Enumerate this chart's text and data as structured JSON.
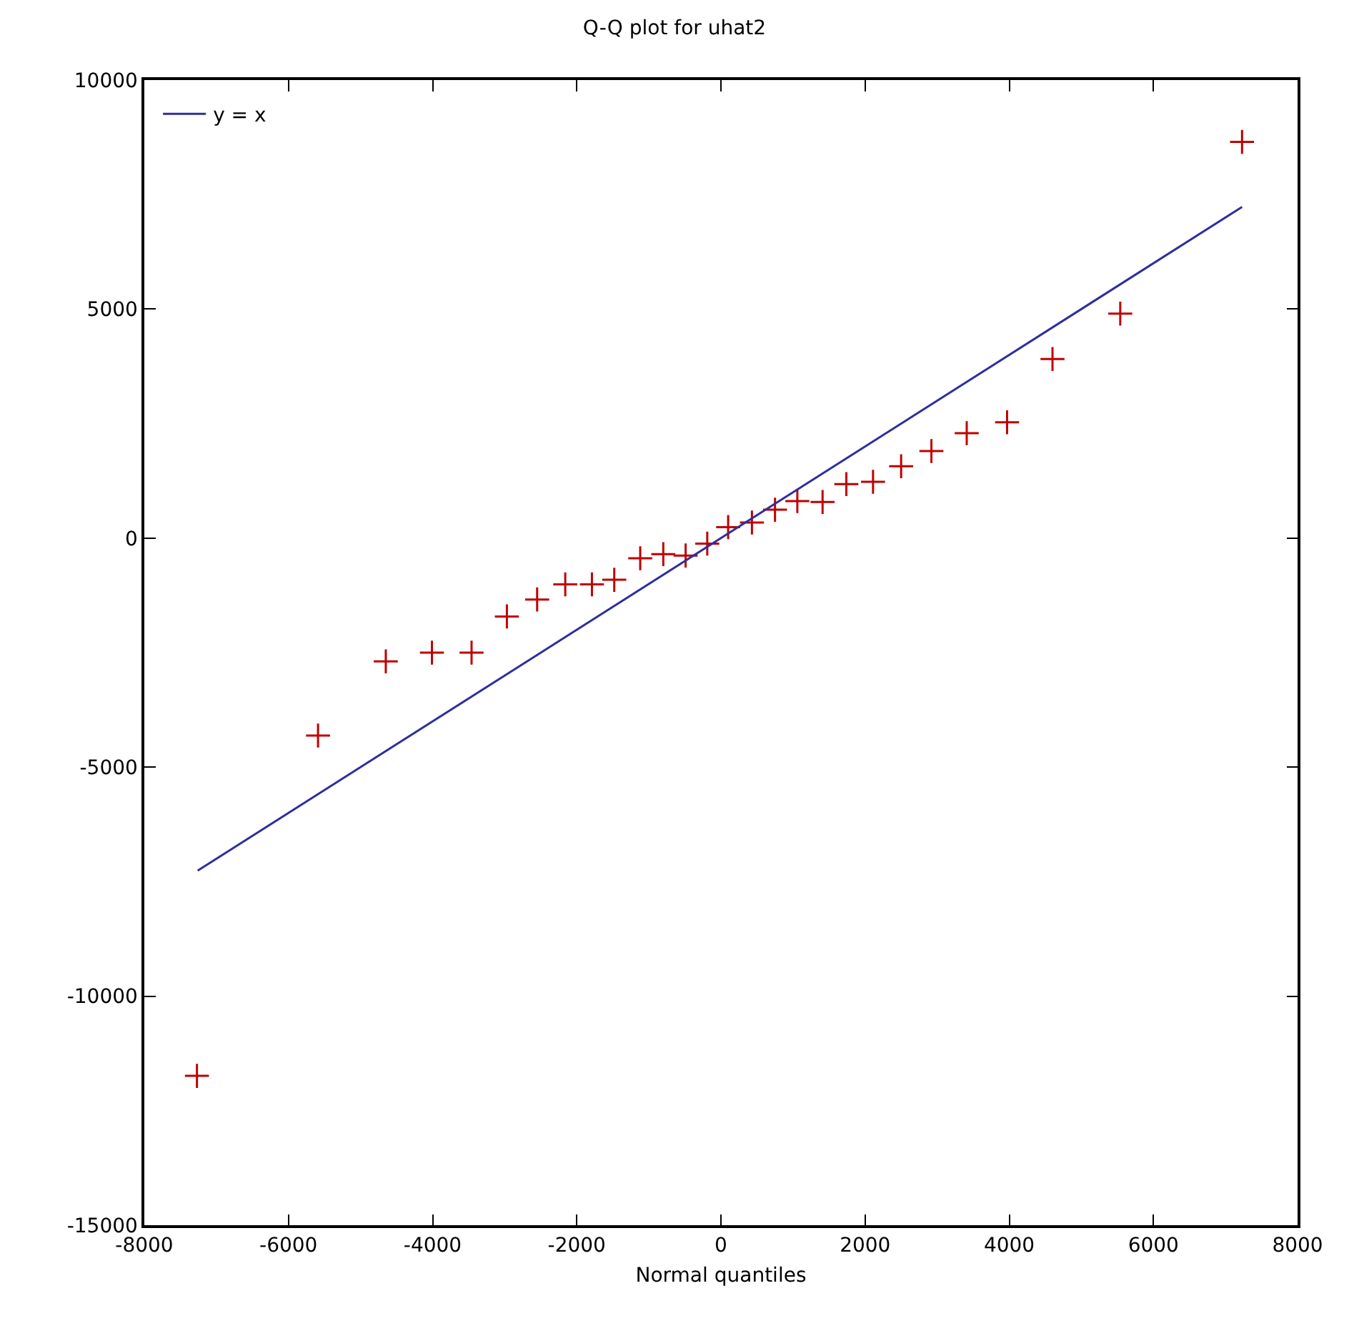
{
  "chart_data": {
    "type": "scatter",
    "title": "Q-Q plot for uhat2",
    "xlabel": "Normal quantiles",
    "series": [
      {
        "color": "#c00000",
        "x": [
          -7270,
          -5590,
          -4650,
          -4010,
          -3460,
          -2970,
          -2550,
          -2160,
          -1790,
          -1480,
          -1120,
          -800,
          -490,
          -190,
          100,
          430,
          750,
          1060,
          1410,
          1740,
          2110,
          2500,
          2920,
          3410,
          3970,
          4600,
          5540,
          7230
        ],
        "values": [
          -11740,
          -4310,
          -2690,
          -2500,
          -2500,
          -1710,
          -1340,
          -1010,
          -1010,
          -910,
          -440,
          -350,
          -380,
          -120,
          240,
          340,
          620,
          810,
          790,
          1180,
          1230,
          1570,
          1900,
          2290,
          2530,
          3910,
          4900,
          8650
        ]
      },
      {
        "type": "line",
        "name": "y = x",
        "color": "#2e2e9e",
        "marker": "none",
        "x": [
          -7260,
          7230
        ],
        "values": [
          -7260,
          7230
        ]
      }
    ],
    "marker": "cross",
    "line_style": "solid",
    "legend": "top left",
    "xlim": [
      -8000,
      8000
    ],
    "xticks": [
      -8000,
      -6000,
      -4000,
      -2000,
      0,
      2000,
      4000,
      6000,
      8000
    ],
    "ylim": [
      -15000,
      10000
    ],
    "yticks": [
      -15000,
      -10000,
      -5000,
      0,
      5000,
      10000
    ]
  }
}
